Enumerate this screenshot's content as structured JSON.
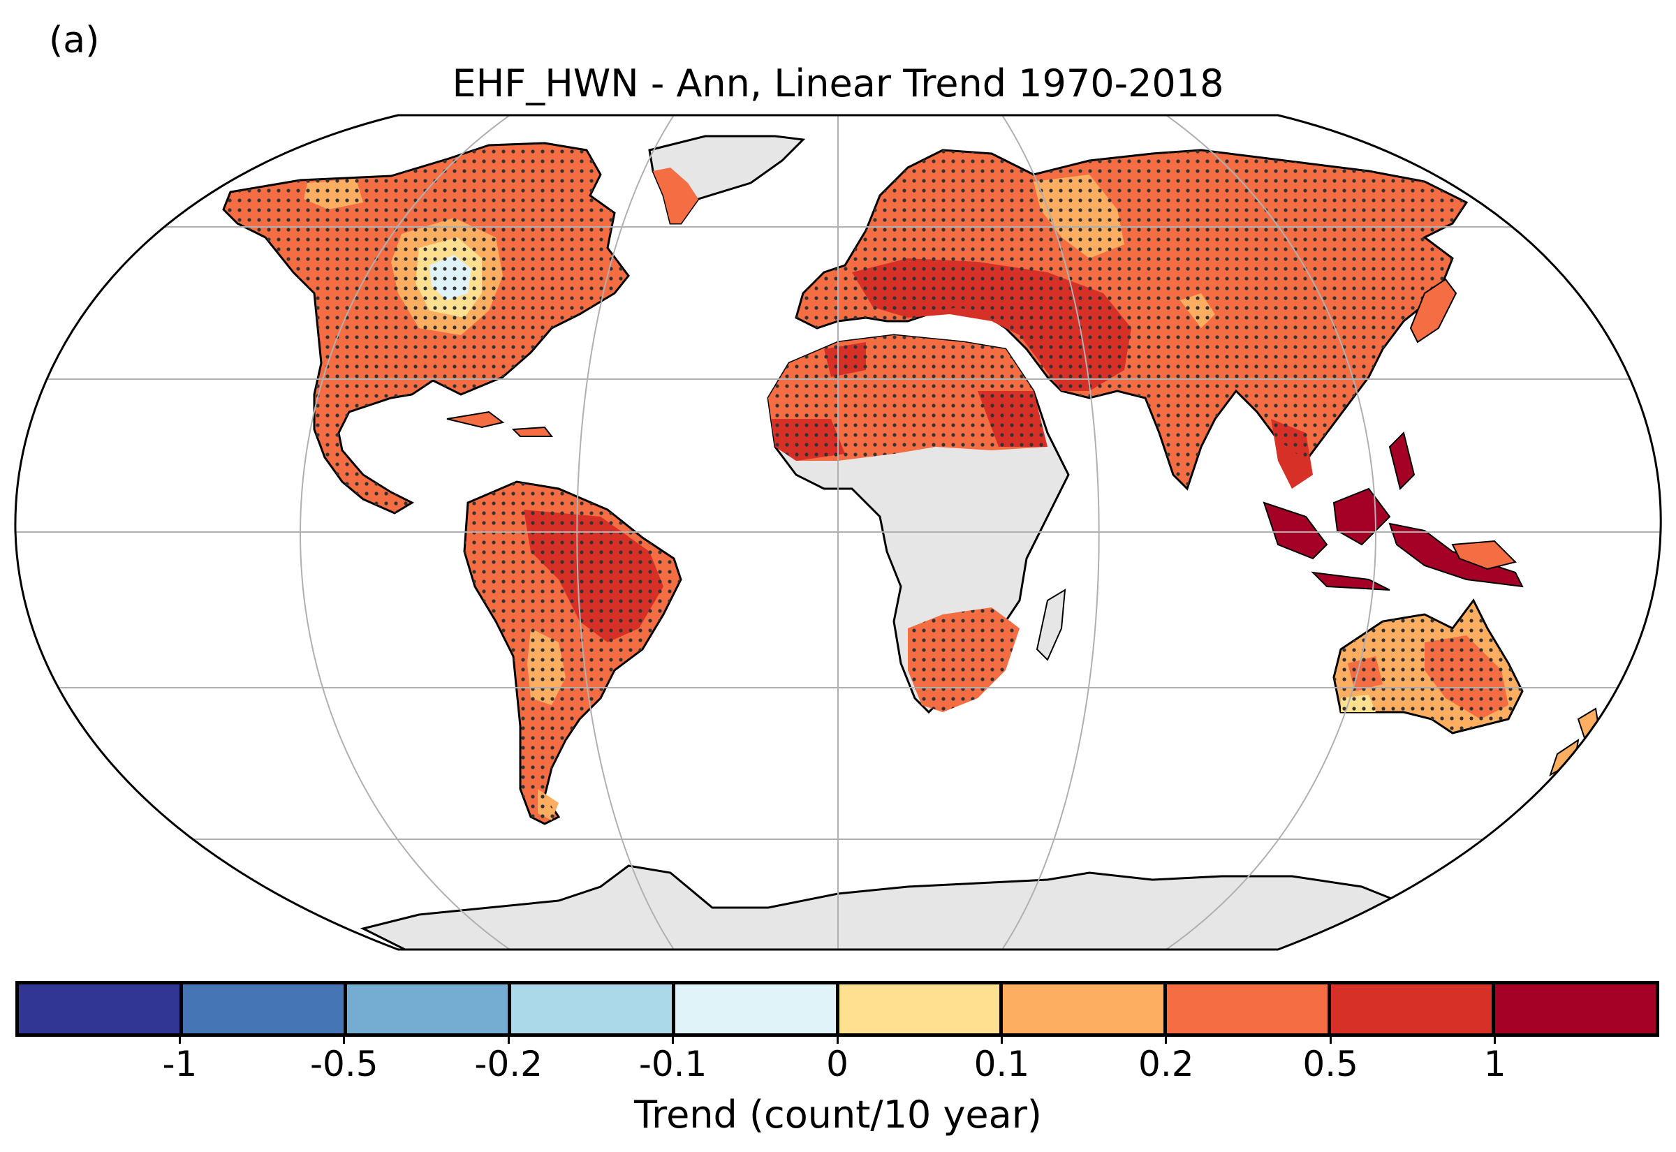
{
  "panel_label": "(a)",
  "title": "EHF_HWN - Ann, Linear Trend 1970-2018",
  "colorbar": {
    "label": "Trend (count/10 year)",
    "colors": [
      "#313695",
      "#4575b4",
      "#74add1",
      "#abd9e9",
      "#e0f3f8",
      "#fee090",
      "#fdae61",
      "#f46d43",
      "#d73027",
      "#a50026"
    ],
    "tick_labels": [
      "-1",
      "-0.5",
      "-0.2",
      "-0.1",
      "0",
      "0.1",
      "0.2",
      "0.5",
      "1"
    ]
  },
  "colors": {
    "no_data_land": "#e6e6e6",
    "ocean": "#ffffff",
    "graticule": "#b0b0b0",
    "coastline": "#000000",
    "significance_dots": "#333333"
  }
}
